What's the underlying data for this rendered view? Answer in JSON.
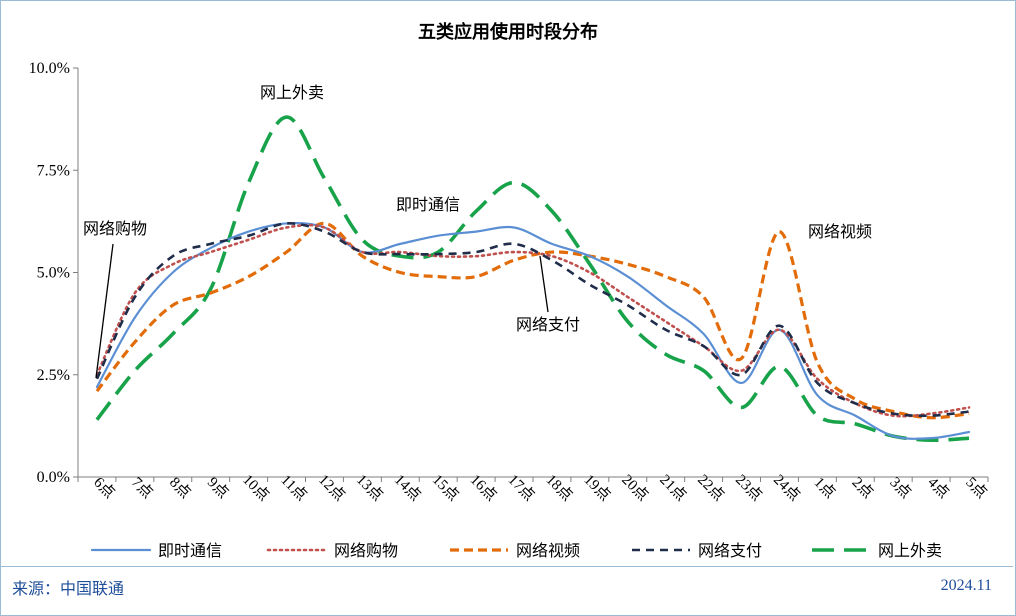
{
  "chart_data": {
    "type": "line",
    "title": "五类应用使用时段分布",
    "categories": [
      "6点",
      "7点",
      "8点",
      "9点",
      "10点",
      "11点",
      "12点",
      "13点",
      "14点",
      "15点",
      "16点",
      "17点",
      "18点",
      "19点",
      "20点",
      "21点",
      "22点",
      "23点",
      "24点",
      "1点",
      "2点",
      "3点",
      "4点",
      "5点"
    ],
    "ylim": [
      0,
      10
    ],
    "yticks": [
      "0.0%",
      "2.5%",
      "5.0%",
      "7.5%",
      "10.0%"
    ],
    "grid": false,
    "legend_position": "bottom",
    "series": [
      {
        "name": "即时通信",
        "color": "#5b8fd4",
        "dash": "solid",
        "values": [
          2.2,
          3.9,
          5.0,
          5.6,
          6.0,
          6.2,
          6.1,
          5.5,
          5.7,
          5.9,
          6.0,
          6.1,
          5.7,
          5.4,
          4.9,
          4.2,
          3.5,
          2.3,
          3.6,
          2.0,
          1.5,
          1.0,
          0.95,
          1.1
        ]
      },
      {
        "name": "网络购物",
        "color": "#c0504d",
        "dash": "dot",
        "values": [
          2.5,
          4.5,
          5.2,
          5.5,
          5.8,
          6.1,
          6.1,
          5.5,
          5.5,
          5.4,
          5.4,
          5.5,
          5.4,
          5.0,
          4.4,
          3.8,
          3.2,
          2.6,
          3.6,
          2.4,
          1.8,
          1.5,
          1.55,
          1.7
        ]
      },
      {
        "name": "网络视频",
        "color": "#e36c0a",
        "dash": "dash",
        "values": [
          2.1,
          3.3,
          4.2,
          4.5,
          4.9,
          5.5,
          6.2,
          5.4,
          5.0,
          4.9,
          4.9,
          5.3,
          5.5,
          5.4,
          5.2,
          4.9,
          4.4,
          2.9,
          6.0,
          2.8,
          1.9,
          1.6,
          1.45,
          1.55
        ]
      },
      {
        "name": "网络支付",
        "color": "#1f2d4a",
        "dash": "dash-short",
        "values": [
          2.4,
          4.4,
          5.4,
          5.7,
          5.9,
          6.2,
          6.0,
          5.5,
          5.45,
          5.45,
          5.5,
          5.7,
          5.3,
          4.7,
          4.2,
          3.6,
          3.2,
          2.5,
          3.7,
          2.3,
          1.8,
          1.55,
          1.5,
          1.6
        ]
      },
      {
        "name": "网上外卖",
        "color": "#18a34a",
        "dash": "long-dash",
        "values": [
          1.4,
          2.6,
          3.5,
          4.6,
          7.2,
          8.8,
          7.3,
          5.8,
          5.4,
          5.5,
          6.5,
          7.2,
          6.5,
          5.2,
          3.8,
          3.0,
          2.6,
          1.7,
          2.7,
          1.5,
          1.3,
          1.0,
          0.9,
          0.95
        ]
      }
    ],
    "annotations": [
      {
        "text": "网上外卖"
      },
      {
        "text": "网络购物"
      },
      {
        "text": "即时通信"
      },
      {
        "text": "网络视频"
      },
      {
        "text": "网络支付"
      }
    ]
  },
  "footer": {
    "source": "来源：中国联通",
    "date": "2024.11"
  }
}
